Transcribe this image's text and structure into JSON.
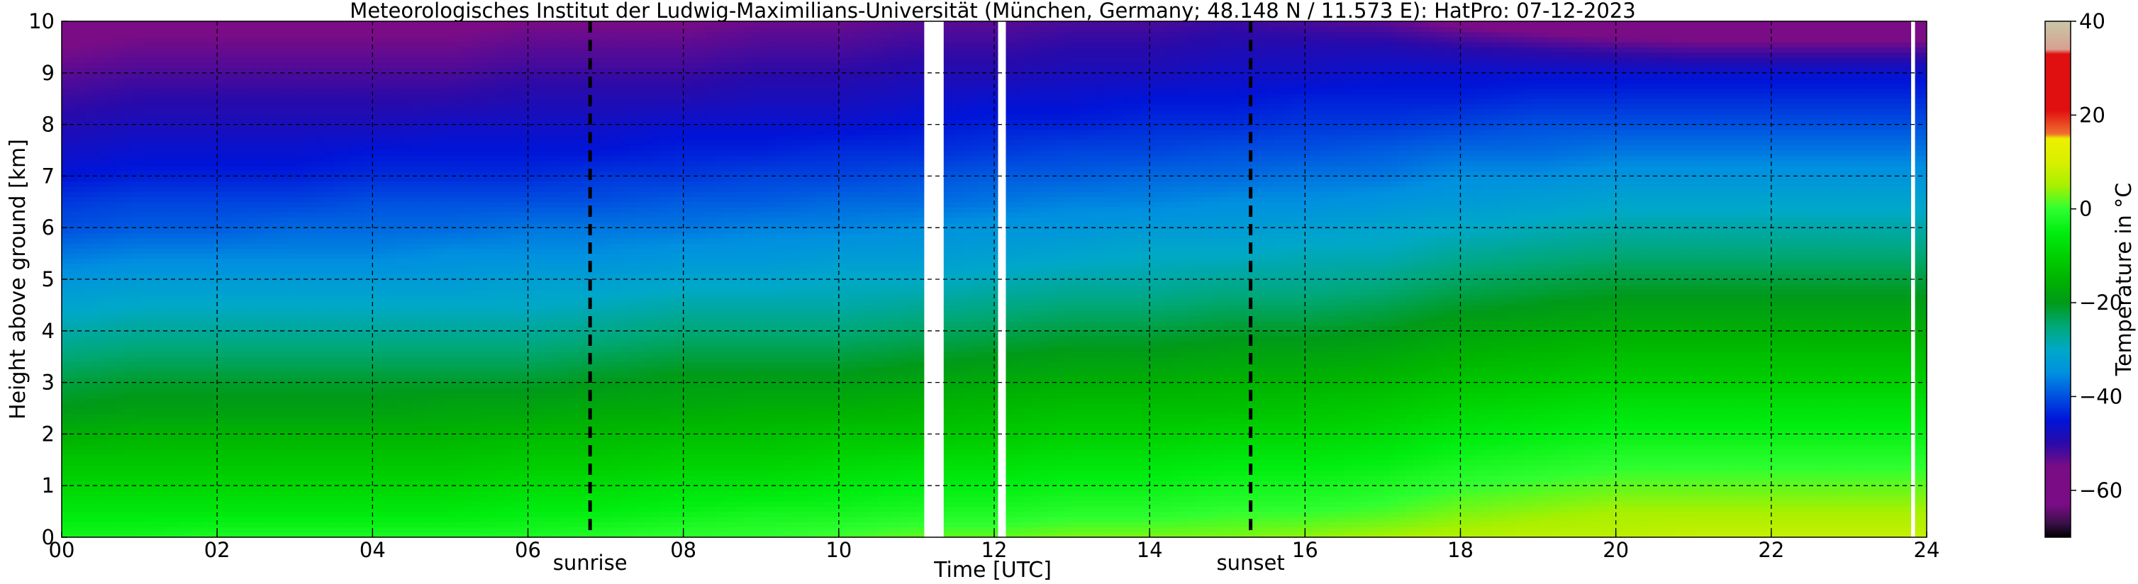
{
  "chart_data": {
    "type": "heatmap",
    "title": "Meteorologisches Institut der Ludwig-Maximilians-Universität (München, Germany; 48.148 N / 11.573 E):    HatPro: 07-12-2023",
    "xlabel": "Time [UTC]",
    "ylabel": "Height above ground [km]",
    "colorbar_label": "Temperature in °C",
    "xlim": [
      0,
      24
    ],
    "ylim": [
      0,
      10
    ],
    "x_ticks": [
      0,
      2,
      4,
      6,
      8,
      10,
      12,
      14,
      16,
      18,
      20,
      22,
      24
    ],
    "x_tick_labels": [
      "00",
      "02",
      "04",
      "06",
      "08",
      "10",
      "12",
      "14",
      "16",
      "18",
      "20",
      "22",
      "24"
    ],
    "y_ticks": [
      0,
      1,
      2,
      3,
      4,
      5,
      6,
      7,
      8,
      9,
      10
    ],
    "y_tick_labels": [
      "0",
      "1",
      "2",
      "3",
      "4",
      "5",
      "6",
      "7",
      "8",
      "9",
      "10"
    ],
    "colorbar_ticks": [
      40,
      20,
      0,
      -20,
      -40,
      -60
    ],
    "colorbar_tick_labels": [
      "40",
      "20",
      "0",
      "−20",
      "−40",
      "−60"
    ],
    "clim": [
      -70,
      40
    ],
    "grid": true,
    "colorbar_colors": [
      {
        "t": -70,
        "color": "#000000"
      },
      {
        "t": -67,
        "color": "#3a1048"
      },
      {
        "t": -63,
        "color": "#7a0c86"
      },
      {
        "t": -55,
        "color": "#7a0c86"
      },
      {
        "t": -50,
        "color": "#2a0aa8"
      },
      {
        "t": -45,
        "color": "#0014d8"
      },
      {
        "t": -40,
        "color": "#0050e0"
      },
      {
        "t": -35,
        "color": "#0090e0"
      },
      {
        "t": -30,
        "color": "#00a8c8"
      },
      {
        "t": -25,
        "color": "#00a878"
      },
      {
        "t": -20,
        "color": "#009a18"
      },
      {
        "t": -15,
        "color": "#00b400"
      },
      {
        "t": -10,
        "color": "#00d000"
      },
      {
        "t": -5,
        "color": "#00ee10"
      },
      {
        "t": 0,
        "color": "#30ff30"
      },
      {
        "t": 5,
        "color": "#a8f000"
      },
      {
        "t": 10,
        "color": "#d8f000"
      },
      {
        "t": 15,
        "color": "#ecf000"
      },
      {
        "t": 16,
        "color": "#f07030"
      },
      {
        "t": 21,
        "color": "#e01010"
      },
      {
        "t": 33,
        "color": "#e01010"
      },
      {
        "t": 34,
        "color": "#d8a090"
      },
      {
        "t": 40,
        "color": "#c8c8a8"
      }
    ],
    "height_km": [
      0,
      0.5,
      1,
      1.5,
      2,
      2.5,
      3,
      3.5,
      4,
      4.5,
      5,
      5.5,
      6,
      6.5,
      7,
      7.5,
      8,
      8.5,
      9,
      9.5,
      10
    ],
    "time_h": [
      0,
      1,
      2,
      3,
      4,
      5,
      6,
      7,
      8,
      9,
      10,
      11,
      12,
      13,
      14,
      15,
      16,
      17,
      18,
      19,
      20,
      21,
      22,
      23,
      24
    ],
    "temperature_profiles": [
      [
        -3,
        -6,
        -9,
        -12,
        -16,
        -20,
        -22,
        -25,
        -28,
        -31,
        -34,
        -37,
        -40,
        -42,
        -45,
        -47,
        -49,
        -51,
        -53,
        -55,
        -57
      ],
      [
        -3,
        -6,
        -9,
        -12,
        -15,
        -19,
        -21,
        -24,
        -27,
        -30,
        -33,
        -36,
        -39,
        -41,
        -44,
        -46,
        -48,
        -50,
        -52,
        -54,
        -56
      ],
      [
        -2,
        -6,
        -9,
        -12,
        -15,
        -19,
        -21,
        -24,
        -27,
        -30,
        -33,
        -36,
        -39,
        -41,
        -44,
        -46,
        -48,
        -50,
        -52,
        -54,
        -56
      ],
      [
        -2,
        -6,
        -9,
        -12,
        -15,
        -19,
        -21,
        -24,
        -27,
        -30,
        -33,
        -36,
        -38,
        -41,
        -44,
        -46,
        -48,
        -50,
        -52,
        -54,
        -56
      ],
      [
        -2,
        -6,
        -9,
        -12,
        -15,
        -19,
        -21,
        -24,
        -27,
        -30,
        -33,
        -36,
        -38,
        -40,
        -43,
        -45,
        -48,
        -50,
        -52,
        -54,
        -56
      ],
      [
        -2,
        -6,
        -9,
        -12,
        -15,
        -18,
        -21,
        -24,
        -27,
        -30,
        -33,
        -35,
        -38,
        -40,
        -43,
        -45,
        -47,
        -50,
        -52,
        -54,
        -56
      ],
      [
        -2,
        -5,
        -8,
        -11,
        -14,
        -18,
        -21,
        -24,
        -27,
        -30,
        -32,
        -35,
        -37,
        -40,
        -43,
        -45,
        -47,
        -49,
        -51,
        -53,
        -55
      ],
      [
        -1,
        -5,
        -8,
        -11,
        -14,
        -17,
        -20,
        -23,
        -26,
        -29,
        -32,
        -35,
        -37,
        -40,
        -42,
        -45,
        -47,
        -49,
        -51,
        -53,
        -55
      ],
      [
        0,
        -4,
        -7,
        -10,
        -13,
        -17,
        -19,
        -22,
        -25,
        -28,
        -31,
        -34,
        -37,
        -39,
        -42,
        -44,
        -46,
        -49,
        -51,
        -53,
        -55
      ],
      [
        0,
        -3,
        -7,
        -10,
        -13,
        -16,
        -19,
        -22,
        -25,
        -28,
        -31,
        -34,
        -36,
        -39,
        -41,
        -44,
        -46,
        -48,
        -50,
        -52,
        -54
      ],
      [
        1,
        -3,
        -6,
        -9,
        -12,
        -16,
        -19,
        -22,
        -25,
        -28,
        -30,
        -33,
        -36,
        -38,
        -41,
        -43,
        -46,
        -48,
        -50,
        -52,
        -54
      ],
      [
        2,
        -2,
        -5,
        -8,
        -12,
        -15,
        -18,
        -21,
        -24,
        -27,
        -30,
        -33,
        -35,
        -38,
        -40,
        -43,
        -45,
        -47,
        -49,
        -51,
        -53
      ],
      [
        2,
        -2,
        -5,
        -8,
        -11,
        -14,
        -17,
        -20,
        -23,
        -26,
        -29,
        -32,
        -34,
        -37,
        -39,
        -42,
        -44,
        -46,
        -49,
        -51,
        -53
      ],
      [
        3,
        -1,
        -4,
        -7,
        -10,
        -13,
        -16,
        -19,
        -22,
        -25,
        -28,
        -31,
        -34,
        -36,
        -39,
        -41,
        -44,
        -46,
        -48,
        -50,
        -52
      ],
      [
        3,
        -1,
        -4,
        -7,
        -10,
        -13,
        -16,
        -19,
        -22,
        -25,
        -28,
        -30,
        -33,
        -36,
        -38,
        -41,
        -43,
        -45,
        -48,
        -50,
        -52
      ],
      [
        3,
        0,
        -3,
        -6,
        -9,
        -13,
        -15,
        -18,
        -21,
        -24,
        -27,
        -30,
        -33,
        -35,
        -38,
        -40,
        -43,
        -45,
        -47,
        -49,
        -51
      ],
      [
        4,
        0,
        -3,
        -6,
        -9,
        -12,
        -15,
        -18,
        -21,
        -24,
        -27,
        -29,
        -32,
        -35,
        -37,
        -40,
        -42,
        -44,
        -47,
        -49,
        -52
      ],
      [
        5,
        1,
        -2,
        -5,
        -8,
        -11,
        -14,
        -17,
        -20,
        -23,
        -26,
        -29,
        -31,
        -34,
        -37,
        -39,
        -42,
        -44,
        -46,
        -49,
        -53
      ],
      [
        6,
        3,
        0,
        -3,
        -6,
        -9,
        -12,
        -15,
        -18,
        -21,
        -24,
        -27,
        -30,
        -33,
        -35,
        -38,
        -41,
        -44,
        -46,
        -50,
        -56
      ],
      [
        7,
        4,
        1,
        -2,
        -5,
        -8,
        -11,
        -14,
        -17,
        -20,
        -23,
        -26,
        -29,
        -32,
        -35,
        -38,
        -40,
        -43,
        -46,
        -51,
        -58
      ],
      [
        7,
        5,
        2,
        -1,
        -4,
        -7,
        -10,
        -13,
        -16,
        -19,
        -22,
        -25,
        -28,
        -31,
        -34,
        -37,
        -40,
        -43,
        -46,
        -52,
        -60
      ],
      [
        8,
        5,
        2,
        -1,
        -4,
        -7,
        -10,
        -13,
        -16,
        -19,
        -22,
        -25,
        -28,
        -31,
        -34,
        -37,
        -40,
        -43,
        -46,
        -53,
        -60
      ],
      [
        8,
        5,
        2,
        -1,
        -4,
        -7,
        -10,
        -13,
        -16,
        -19,
        -22,
        -25,
        -28,
        -31,
        -34,
        -37,
        -40,
        -43,
        -46,
        -53,
        -60
      ],
      [
        8,
        5,
        2,
        -1,
        -4,
        -7,
        -10,
        -13,
        -16,
        -19,
        -22,
        -25,
        -28,
        -31,
        -34,
        -37,
        -40,
        -43,
        -46,
        -53,
        -60
      ],
      [
        8,
        5,
        2,
        -1,
        -4,
        -7,
        -10,
        -13,
        -16,
        -19,
        -22,
        -25,
        -28,
        -31,
        -34,
        -37,
        -40,
        -43,
        -46,
        -53,
        -60
      ]
    ],
    "missing_time_intervals": [
      [
        11.1,
        11.35
      ],
      [
        12.05,
        12.15
      ],
      [
        23.8,
        23.85
      ]
    ],
    "annotations": [
      {
        "label": "sunrise",
        "time_h": 6.8
      },
      {
        "label": "sunset",
        "time_h": 15.3
      }
    ]
  }
}
